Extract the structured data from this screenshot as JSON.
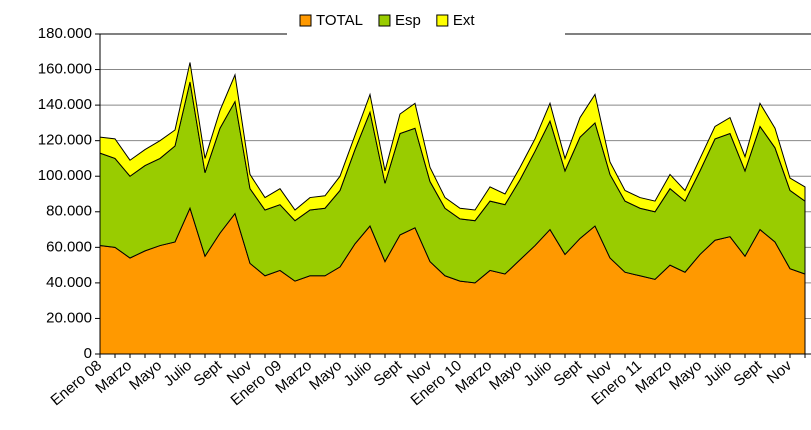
{
  "chart_data": {
    "type": "stacked_area",
    "categories": [
      "Enero 08",
      null,
      "Marzo",
      null,
      "Mayo",
      null,
      "Julio",
      null,
      "Sept",
      null,
      "Nov",
      null,
      "Enero 09",
      null,
      "Marzo",
      null,
      "Mayo",
      null,
      "Julio",
      null,
      "Sept",
      null,
      "Nov",
      null,
      "Enero 10",
      null,
      "Marzo",
      null,
      "Mayo",
      null,
      "Julio",
      null,
      "Sept",
      null,
      "Nov",
      null,
      "Enero 11",
      null,
      "Marzo",
      null,
      "Mayo",
      null,
      "Julio",
      null,
      "Sept",
      null,
      "Nov",
      null
    ],
    "series": [
      {
        "name": "TOTAL",
        "color": "#ff9900",
        "values": [
          61000,
          60000,
          54000,
          58000,
          61000,
          63000,
          82000,
          55000,
          68000,
          79000,
          51000,
          44000,
          47000,
          41000,
          44000,
          44000,
          49000,
          62000,
          72000,
          52000,
          67000,
          71000,
          52000,
          44000,
          41000,
          40000,
          47000,
          45000,
          53000,
          61000,
          70000,
          56000,
          65000,
          72000,
          54000,
          46000,
          44000,
          42000,
          50000,
          46000,
          56000,
          64000,
          66000,
          55000,
          70000,
          63000,
          48000,
          45000
        ]
      },
      {
        "name": "Esp",
        "color": "#99cc00",
        "values": [
          52000,
          50000,
          46000,
          48000,
          49000,
          54000,
          71000,
          47000,
          59000,
          63000,
          42000,
          37000,
          37000,
          34000,
          37000,
          38000,
          43000,
          53000,
          64000,
          44000,
          57000,
          56000,
          45000,
          38000,
          35000,
          35000,
          39000,
          39000,
          45000,
          53000,
          61000,
          47000,
          57000,
          58000,
          47000,
          40000,
          38000,
          38000,
          43000,
          40000,
          47000,
          57000,
          58000,
          48000,
          58000,
          53000,
          44000,
          41000
        ]
      },
      {
        "name": "Ext",
        "color": "#ffff00",
        "values": [
          9000,
          11000,
          9000,
          9000,
          10000,
          9000,
          11000,
          8000,
          10000,
          15000,
          8000,
          7000,
          9000,
          6000,
          7000,
          7000,
          8000,
          8000,
          10000,
          7000,
          11000,
          14000,
          8000,
          6000,
          6000,
          6000,
          8000,
          6000,
          7000,
          7000,
          10000,
          7000,
          11000,
          16000,
          7000,
          6000,
          6000,
          6000,
          8000,
          6000,
          7000,
          7000,
          9000,
          8000,
          13000,
          11000,
          7000,
          8000
        ]
      }
    ],
    "ylim": [
      0,
      180000
    ],
    "yticks": [
      0,
      {
        "value": 20000,
        "label": "20.000"
      },
      {
        "value": 40000,
        "label": "40.000"
      },
      {
        "value": 60000,
        "label": "60.000"
      },
      {
        "value": 80000,
        "label": "80.000"
      },
      {
        "value": 100000,
        "label": "100.000"
      },
      {
        "value": 120000,
        "label": "120.000"
      },
      {
        "value": 140000,
        "label": "140.000"
      },
      {
        "value": 160000,
        "label": "160.000"
      },
      {
        "value": 180000,
        "label": "180.000"
      }
    ],
    "grid": true,
    "legend": "top"
  }
}
